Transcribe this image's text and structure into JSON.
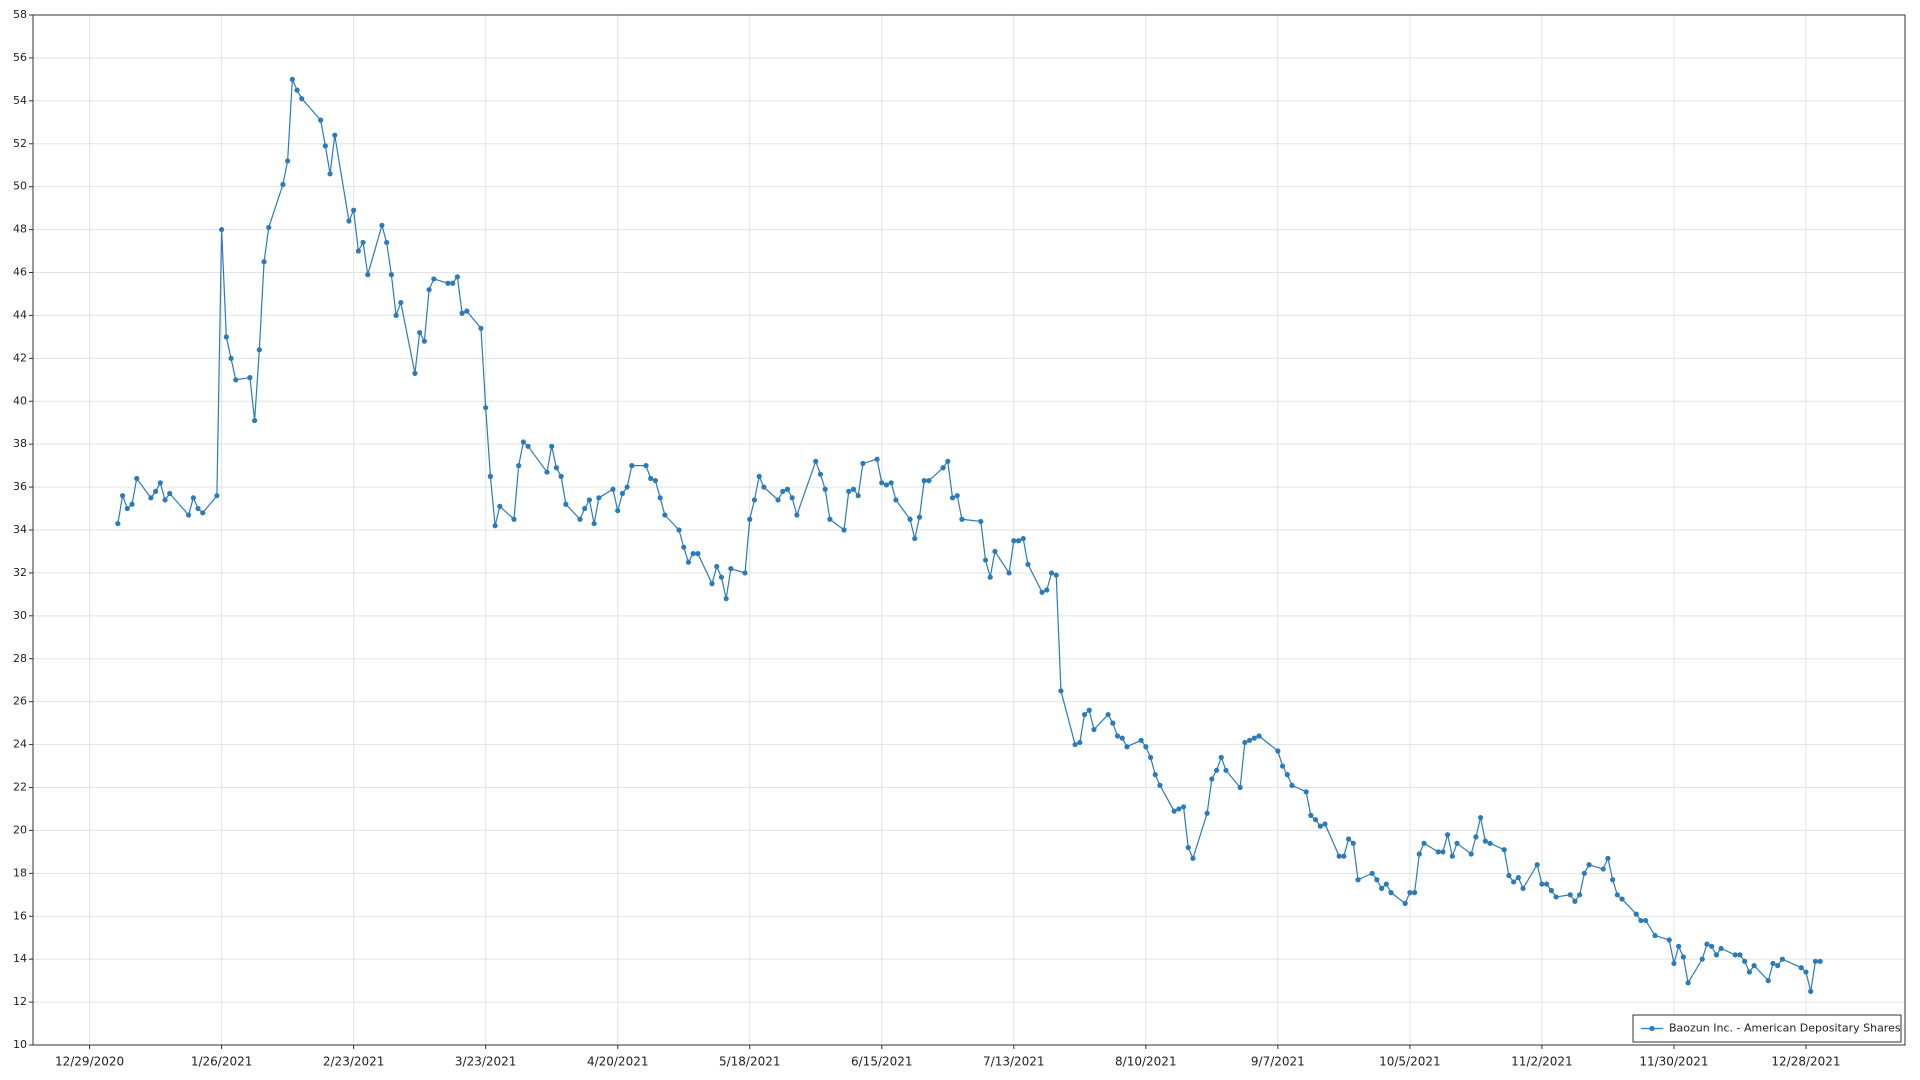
{
  "chart_data": {
    "type": "line",
    "x": [
      "2021-01-04",
      "2021-01-05",
      "2021-01-06",
      "2021-01-07",
      "2021-01-08",
      "2021-01-11",
      "2021-01-12",
      "2021-01-13",
      "2021-01-14",
      "2021-01-15",
      "2021-01-19",
      "2021-01-20",
      "2021-01-21",
      "2021-01-22",
      "2021-01-25",
      "2021-01-26",
      "2021-01-27",
      "2021-01-28",
      "2021-01-29",
      "2021-02-01",
      "2021-02-02",
      "2021-02-03",
      "2021-02-04",
      "2021-02-05",
      "2021-02-08",
      "2021-02-09",
      "2021-02-10",
      "2021-02-11",
      "2021-02-12",
      "2021-02-16",
      "2021-02-17",
      "2021-02-18",
      "2021-02-19",
      "2021-02-22",
      "2021-02-23",
      "2021-02-24",
      "2021-02-25",
      "2021-02-26",
      "2021-03-01",
      "2021-03-02",
      "2021-03-03",
      "2021-03-04",
      "2021-03-05",
      "2021-03-08",
      "2021-03-09",
      "2021-03-10",
      "2021-03-11",
      "2021-03-12",
      "2021-03-15",
      "2021-03-16",
      "2021-03-17",
      "2021-03-18",
      "2021-03-19",
      "2021-03-22",
      "2021-03-23",
      "2021-03-24",
      "2021-03-25",
      "2021-03-26",
      "2021-03-29",
      "2021-03-30",
      "2021-03-31",
      "2021-04-01",
      "2021-04-05",
      "2021-04-06",
      "2021-04-07",
      "2021-04-08",
      "2021-04-09",
      "2021-04-12",
      "2021-04-13",
      "2021-04-14",
      "2021-04-15",
      "2021-04-16",
      "2021-04-19",
      "2021-04-20",
      "2021-04-21",
      "2021-04-22",
      "2021-04-23",
      "2021-04-26",
      "2021-04-27",
      "2021-04-28",
      "2021-04-29",
      "2021-04-30",
      "2021-05-03",
      "2021-05-04",
      "2021-05-05",
      "2021-05-06",
      "2021-05-07",
      "2021-05-10",
      "2021-05-11",
      "2021-05-12",
      "2021-05-13",
      "2021-05-14",
      "2021-05-17",
      "2021-05-18",
      "2021-05-19",
      "2021-05-20",
      "2021-05-21",
      "2021-05-24",
      "2021-05-25",
      "2021-05-26",
      "2021-05-27",
      "2021-05-28",
      "2021-06-01",
      "2021-06-02",
      "2021-06-03",
      "2021-06-04",
      "2021-06-07",
      "2021-06-08",
      "2021-06-09",
      "2021-06-10",
      "2021-06-11",
      "2021-06-14",
      "2021-06-15",
      "2021-06-16",
      "2021-06-17",
      "2021-06-18",
      "2021-06-21",
      "2021-06-22",
      "2021-06-23",
      "2021-06-24",
      "2021-06-25",
      "2021-06-28",
      "2021-06-29",
      "2021-06-30",
      "2021-07-01",
      "2021-07-02",
      "2021-07-06",
      "2021-07-07",
      "2021-07-08",
      "2021-07-09",
      "2021-07-12",
      "2021-07-13",
      "2021-07-14",
      "2021-07-15",
      "2021-07-16",
      "2021-07-19",
      "2021-07-20",
      "2021-07-21",
      "2021-07-22",
      "2021-07-23",
      "2021-07-26",
      "2021-07-27",
      "2021-07-28",
      "2021-07-29",
      "2021-07-30",
      "2021-08-02",
      "2021-08-03",
      "2021-08-04",
      "2021-08-05",
      "2021-08-06",
      "2021-08-09",
      "2021-08-10",
      "2021-08-11",
      "2021-08-12",
      "2021-08-13",
      "2021-08-16",
      "2021-08-17",
      "2021-08-18",
      "2021-08-19",
      "2021-08-20",
      "2021-08-23",
      "2021-08-24",
      "2021-08-25",
      "2021-08-26",
      "2021-08-27",
      "2021-08-30",
      "2021-08-31",
      "2021-09-01",
      "2021-09-02",
      "2021-09-03",
      "2021-09-07",
      "2021-09-08",
      "2021-09-09",
      "2021-09-10",
      "2021-09-13",
      "2021-09-14",
      "2021-09-15",
      "2021-09-16",
      "2021-09-17",
      "2021-09-20",
      "2021-09-21",
      "2021-09-22",
      "2021-09-23",
      "2021-09-24",
      "2021-09-27",
      "2021-09-28",
      "2021-09-29",
      "2021-09-30",
      "2021-10-01",
      "2021-10-04",
      "2021-10-05",
      "2021-10-06",
      "2021-10-07",
      "2021-10-08",
      "2021-10-11",
      "2021-10-12",
      "2021-10-13",
      "2021-10-14",
      "2021-10-15",
      "2021-10-18",
      "2021-10-19",
      "2021-10-20",
      "2021-10-21",
      "2021-10-22",
      "2021-10-25",
      "2021-10-26",
      "2021-10-27",
      "2021-10-28",
      "2021-10-29",
      "2021-11-01",
      "2021-11-02",
      "2021-11-03",
      "2021-11-04",
      "2021-11-05",
      "2021-11-08",
      "2021-11-09",
      "2021-11-10",
      "2021-11-11",
      "2021-11-12",
      "2021-11-15",
      "2021-11-16",
      "2021-11-17",
      "2021-11-18",
      "2021-11-19",
      "2021-11-22",
      "2021-11-23",
      "2021-11-24",
      "2021-11-26",
      "2021-11-29",
      "2021-11-30",
      "2021-12-01",
      "2021-12-02",
      "2021-12-03",
      "2021-12-06",
      "2021-12-07",
      "2021-12-08",
      "2021-12-09",
      "2021-12-10",
      "2021-12-13",
      "2021-12-14",
      "2021-12-15",
      "2021-12-16",
      "2021-12-17",
      "2021-12-20",
      "2021-12-21",
      "2021-12-22",
      "2021-12-23",
      "2021-12-27",
      "2021-12-28",
      "2021-12-29",
      "2021-12-30",
      "2021-12-31"
    ],
    "series": [
      {
        "name": "Baozun Inc. - American Depositary Shares",
        "color": "#2b7bba",
        "values": [
          34.3,
          35.6,
          35.0,
          35.2,
          36.4,
          35.5,
          35.8,
          36.2,
          35.4,
          35.7,
          34.7,
          35.5,
          35.0,
          34.8,
          35.6,
          48.0,
          43.0,
          42.0,
          41.0,
          41.1,
          39.1,
          42.4,
          46.5,
          48.1,
          50.1,
          51.2,
          55.0,
          54.5,
          54.1,
          53.1,
          51.9,
          50.6,
          52.4,
          48.4,
          48.9,
          47.0,
          47.4,
          45.9,
          48.2,
          47.4,
          45.9,
          44.0,
          44.6,
          41.3,
          43.2,
          42.8,
          45.2,
          45.7,
          45.5,
          45.5,
          45.8,
          44.1,
          44.2,
          43.4,
          39.7,
          36.5,
          34.2,
          35.1,
          34.5,
          37.0,
          38.1,
          37.9,
          36.7,
          37.9,
          36.9,
          36.5,
          35.2,
          34.5,
          35.0,
          35.4,
          34.3,
          35.5,
          35.9,
          34.9,
          35.7,
          36.0,
          37.0,
          37.0,
          36.4,
          36.3,
          35.5,
          34.7,
          34.0,
          33.2,
          32.5,
          32.9,
          32.9,
          31.5,
          32.3,
          31.8,
          30.8,
          32.2,
          32.0,
          34.5,
          35.4,
          36.5,
          36.0,
          35.4,
          35.8,
          35.9,
          35.5,
          34.7,
          37.2,
          36.6,
          35.9,
          34.5,
          34.0,
          35.8,
          35.9,
          35.6,
          37.1,
          37.3,
          36.2,
          36.1,
          36.2,
          35.4,
          34.5,
          33.6,
          34.6,
          36.3,
          36.3,
          36.9,
          37.2,
          35.5,
          35.6,
          34.5,
          34.4,
          32.6,
          31.8,
          33.0,
          32.0,
          33.5,
          33.5,
          33.6,
          32.4,
          31.1,
          31.2,
          32.0,
          31.9,
          26.5,
          24.0,
          24.1,
          25.4,
          25.6,
          24.7,
          25.4,
          25.0,
          24.4,
          24.3,
          23.9,
          24.2,
          23.9,
          23.4,
          22.6,
          22.1,
          20.9,
          21.0,
          21.1,
          19.2,
          18.7,
          20.8,
          22.4,
          22.8,
          23.4,
          22.8,
          22.0,
          24.1,
          24.2,
          24.3,
          24.4,
          23.7,
          23.0,
          22.6,
          22.1,
          21.8,
          20.7,
          20.5,
          20.2,
          20.3,
          18.8,
          18.8,
          19.6,
          19.4,
          17.7,
          18.0,
          17.7,
          17.3,
          17.5,
          17.1,
          16.6,
          17.1,
          17.1,
          18.9,
          19.4,
          19.0,
          19.0,
          19.8,
          18.8,
          19.4,
          18.9,
          19.7,
          20.6,
          19.5,
          19.4,
          19.1,
          17.9,
          17.6,
          17.8,
          17.3,
          18.4,
          17.5,
          17.5,
          17.2,
          16.9,
          17.0,
          16.7,
          17.0,
          18.0,
          18.4,
          18.2,
          18.7,
          17.7,
          17.0,
          16.8,
          16.1,
          15.8,
          15.8,
          15.1,
          14.9,
          13.8,
          14.6,
          14.1,
          12.9,
          14.0,
          14.7,
          14.6,
          14.2,
          14.5,
          14.2,
          14.2,
          13.9,
          13.4,
          13.7,
          13.0,
          13.8,
          13.7,
          14.0,
          13.6,
          13.4,
          12.5,
          13.9,
          13.9
        ]
      }
    ],
    "xlim": [
      "2020-12-17",
      "2022-01-18"
    ],
    "xticks": [
      {
        "value": "2020-12-29",
        "label": "12/29/2020"
      },
      {
        "value": "2021-01-26",
        "label": "1/26/2021"
      },
      {
        "value": "2021-02-23",
        "label": "2/23/2021"
      },
      {
        "value": "2021-03-23",
        "label": "3/23/2021"
      },
      {
        "value": "2021-04-20",
        "label": "4/20/2021"
      },
      {
        "value": "2021-05-18",
        "label": "5/18/2021"
      },
      {
        "value": "2021-06-15",
        "label": "6/15/2021"
      },
      {
        "value": "2021-07-13",
        "label": "7/13/2021"
      },
      {
        "value": "2021-08-10",
        "label": "8/10/2021"
      },
      {
        "value": "2021-09-07",
        "label": "9/7/2021"
      },
      {
        "value": "2021-10-05",
        "label": "10/5/2021"
      },
      {
        "value": "2021-11-02",
        "label": "11/2/2021"
      },
      {
        "value": "2021-11-30",
        "label": "11/30/2021"
      },
      {
        "value": "2021-12-28",
        "label": "12/28/2021"
      }
    ],
    "ylim": [
      10,
      58
    ],
    "yticks": [
      10,
      12,
      14,
      16,
      18,
      20,
      22,
      24,
      26,
      28,
      30,
      32,
      34,
      36,
      38,
      40,
      42,
      44,
      46,
      48,
      50,
      52,
      54,
      56,
      58
    ],
    "grid": true,
    "legend": "lower right"
  }
}
